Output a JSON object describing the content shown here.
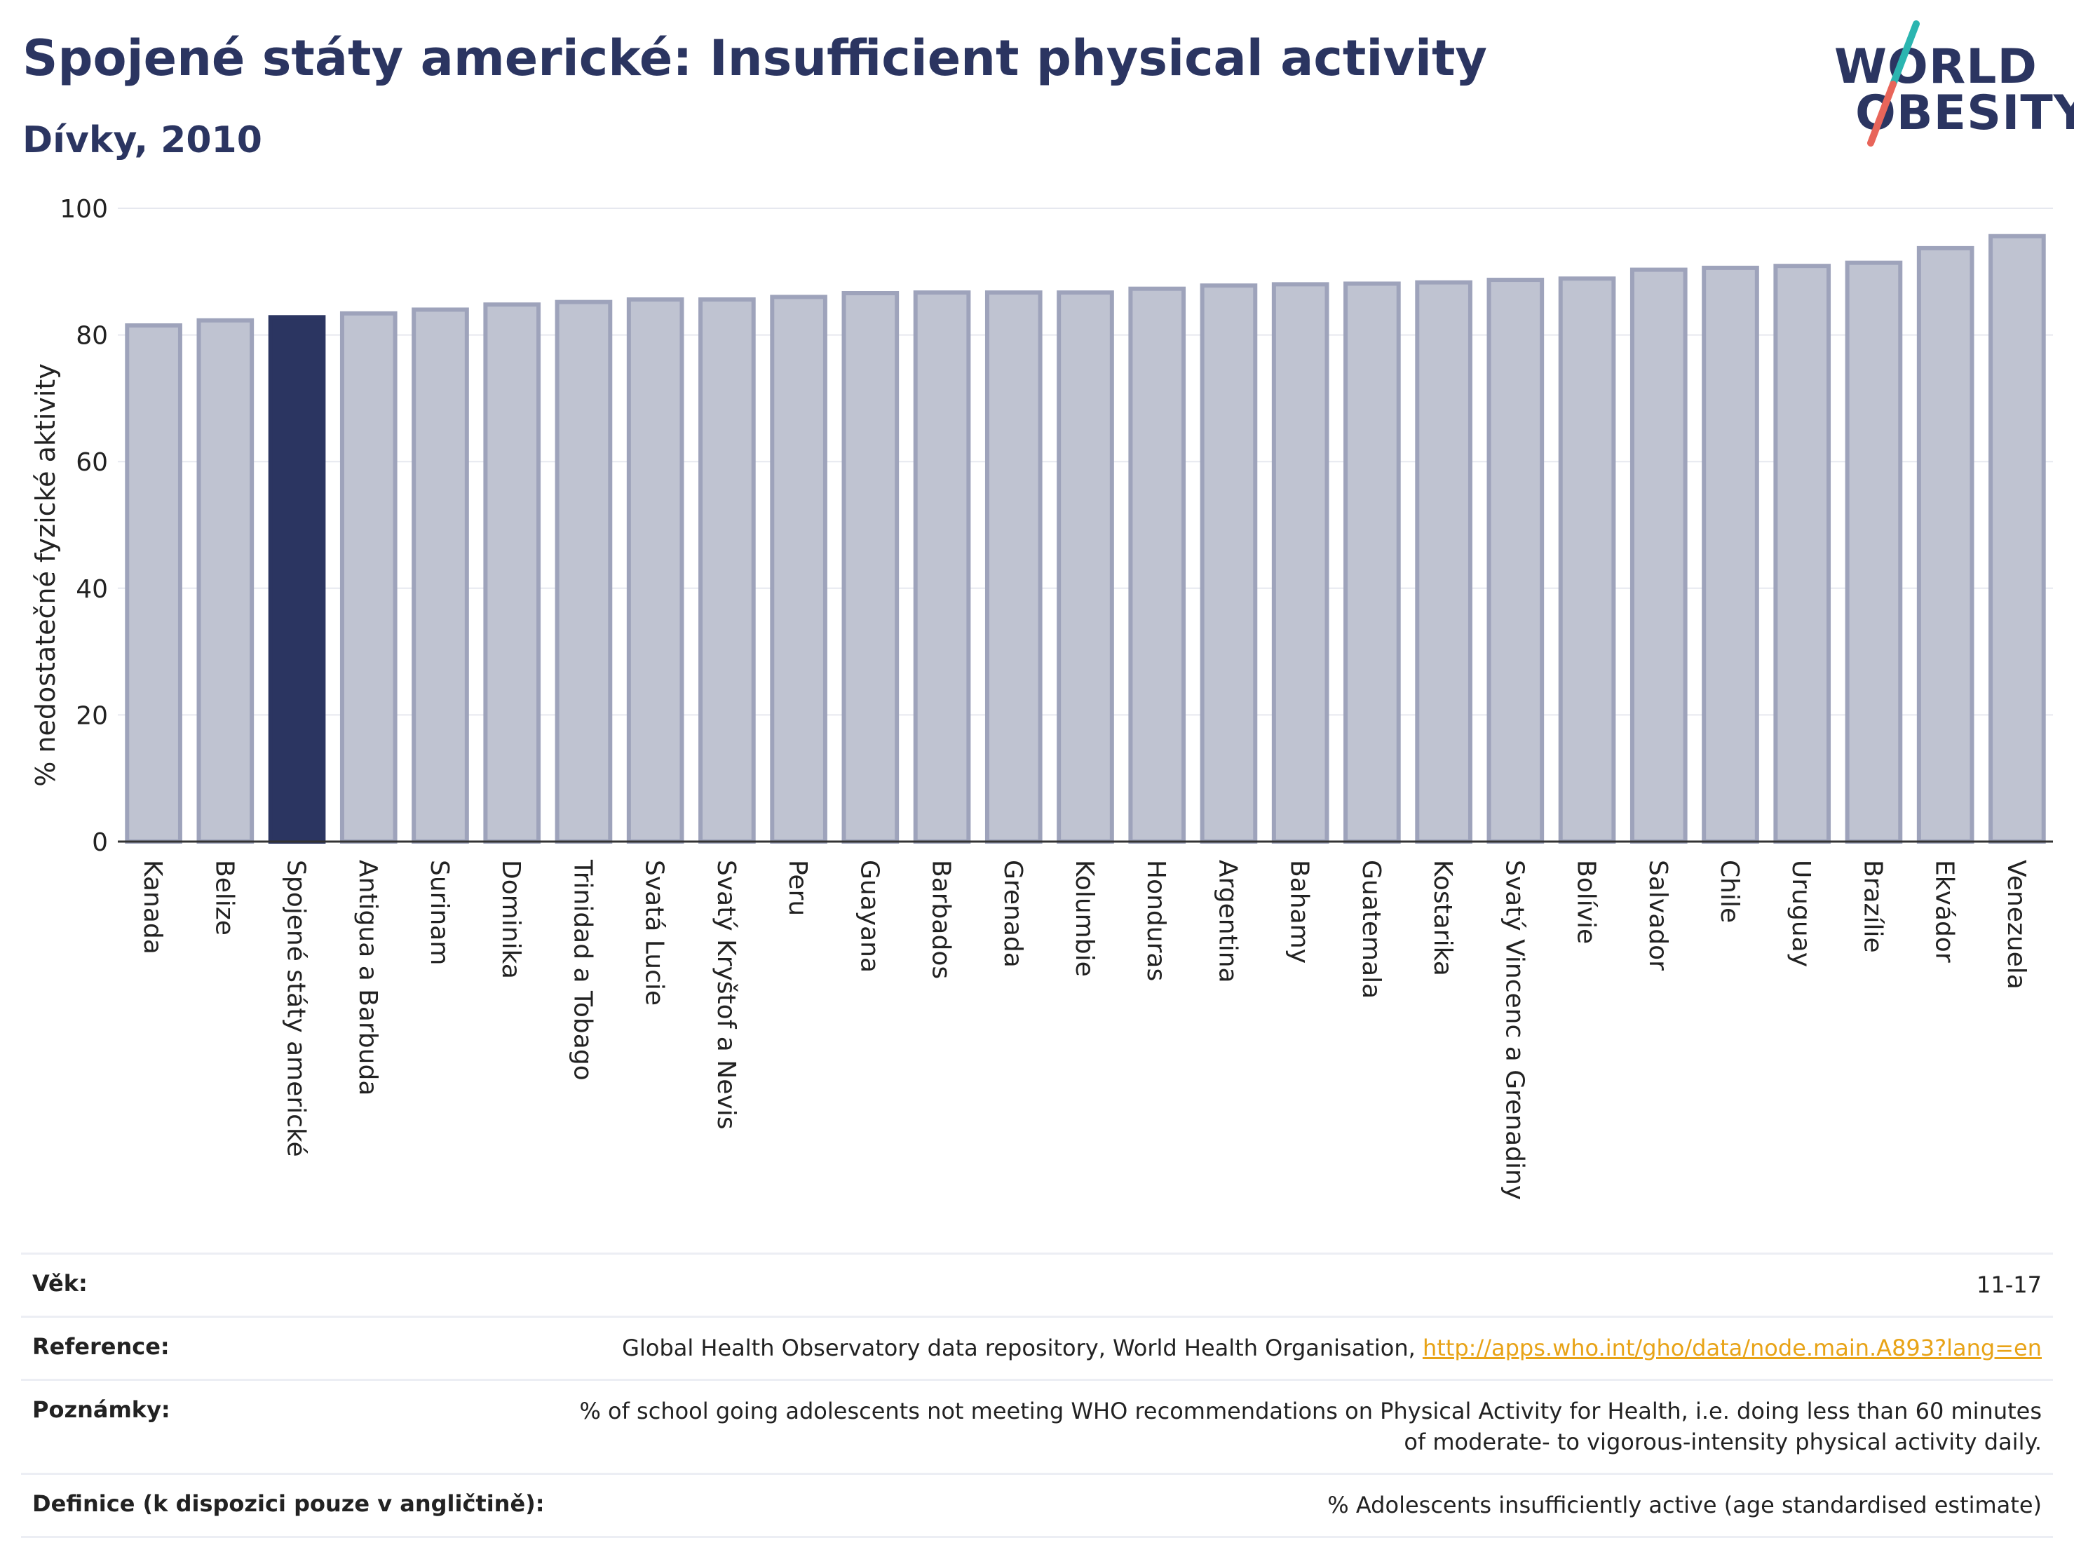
{
  "header": {
    "title": "Spojené státy americké: Insufficient physical activity",
    "subtitle": "Dívky, 2010"
  },
  "logo": {
    "line1": "WORLD",
    "line2": "OBESITY",
    "colors": {
      "text": "#2b3561",
      "slash_top": "#2bb5b0",
      "slash_bottom": "#e8655a"
    }
  },
  "chart_data": {
    "type": "bar",
    "title": "Spojené státy americké: Insufficient physical activity",
    "subtitle": "Dívky, 2010",
    "xlabel": "",
    "ylabel": "% nedostatečné fyzické aktivity",
    "ylim": [
      0,
      100
    ],
    "yticks": [
      0,
      20,
      40,
      60,
      80,
      100
    ],
    "grid": true,
    "categories": [
      "Kanada",
      "Belize",
      "Spojené státy americké",
      "Antigua a Barbuda",
      "Surinam",
      "Dominika",
      "Trinidad a Tobago",
      "Svatá Lucie",
      "Svatý Kryštof a Nevis",
      "Peru",
      "Guayana",
      "Barbados",
      "Grenada",
      "Kolumbie",
      "Honduras",
      "Argentina",
      "Bahamy",
      "Guatemala",
      "Kostarika",
      "Svatý Vincenc a Grenadiny",
      "Bolívie",
      "Salvador",
      "Chile",
      "Uruguay",
      "Brazílie",
      "Ekvádor",
      "Venezuela"
    ],
    "values": [
      81.5,
      82.3,
      82.8,
      83.4,
      84.0,
      84.8,
      85.2,
      85.6,
      85.6,
      86.0,
      86.6,
      86.7,
      86.7,
      86.7,
      87.3,
      87.8,
      88.0,
      88.1,
      88.3,
      88.7,
      88.9,
      90.3,
      90.6,
      90.9,
      91.4,
      93.7,
      95.6
    ],
    "highlight": "Spojené státy americké",
    "colors": {
      "bar": "#bfc3d1",
      "bar_edge": "#9ea3bb",
      "highlight": "#2b3561"
    }
  },
  "info": {
    "age_label": "Věk:",
    "age_value": "11-17",
    "reference_label": "Reference:",
    "reference_text": "Global Health Observatory data repository, World Health Organisation, ",
    "reference_link": "http://apps.who.int/gho/data/node.main.A893?lang=en",
    "notes_label": "Poznámky:",
    "notes_value": "% of school going adolescents not meeting WHO recommendations on Physical Activity for Health, i.e. doing less than 60 minutes of moderate- to vigorous-intensity physical activity daily.",
    "definition_label": "Definice (k dispozici pouze v angličtině):",
    "definition_value": "% Adolescents insufficiently active (age standardised estimate)"
  }
}
